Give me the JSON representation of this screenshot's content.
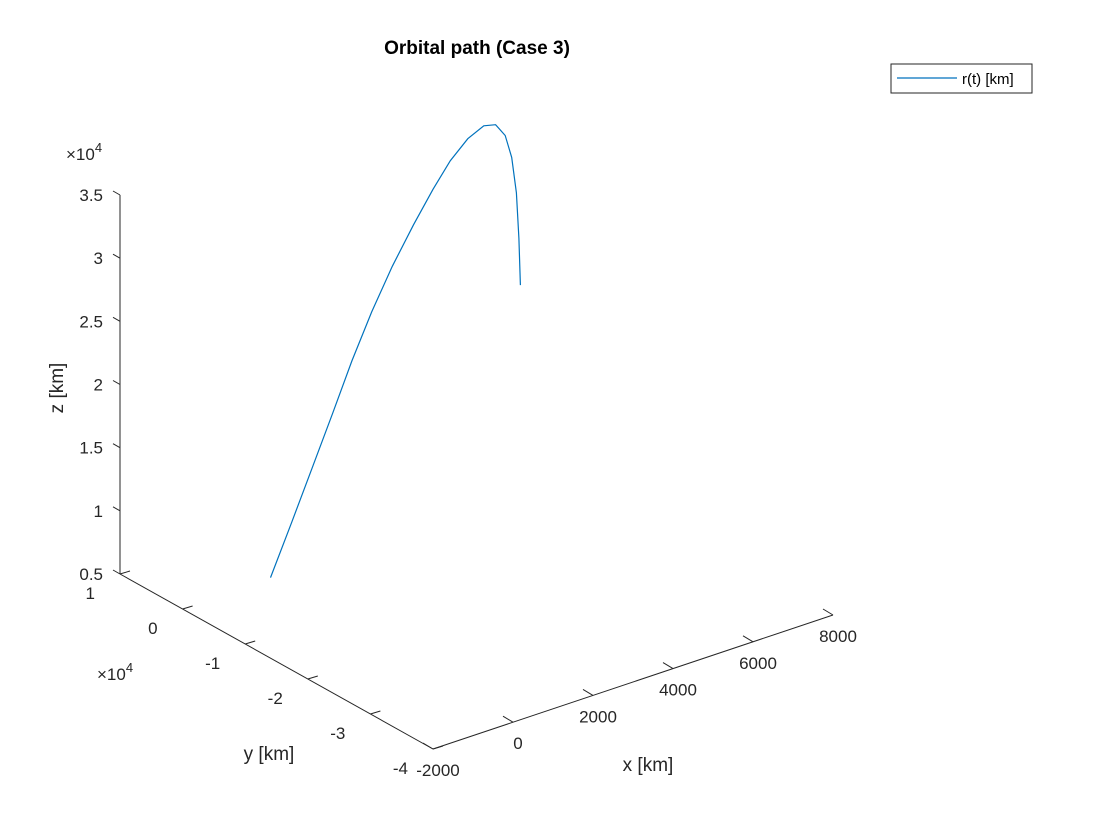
{
  "chart_data": {
    "type": "line",
    "projection": "3d",
    "title": "Orbital path (Case 3)",
    "xlabel": "x [km]",
    "ylabel": "y [km]",
    "zlabel": "z [km]",
    "xlim": [
      -2000,
      8000
    ],
    "ylim": [
      -40000,
      10000
    ],
    "zlim": [
      5000,
      35000
    ],
    "x_ticks": [
      "-2000",
      "0",
      "2000",
      "4000",
      "6000",
      "8000"
    ],
    "y_ticks": [
      "-4",
      "-3",
      "-2",
      "-1",
      "0",
      "1"
    ],
    "z_ticks": [
      "0.5",
      "1",
      "1.5",
      "2",
      "2.5",
      "3",
      "3.5"
    ],
    "y_exponent_label": "×10",
    "y_exponent_power": "4",
    "z_exponent_label": "×10",
    "z_exponent_power": "4",
    "legend": {
      "position": "top-right",
      "entries": [
        "r(t) [km]"
      ]
    },
    "grid": false,
    "series": [
      {
        "name": "r(t) [km]",
        "color": "#0072BD",
        "x": [
          -100,
          540,
          1230,
          1920,
          2640,
          3400,
          4150,
          4900,
          5560,
          6100,
          6600,
          7000,
          7250,
          7380,
          7400,
          7330,
          7190,
          7040
        ],
        "y": [
          -1900,
          -1200,
          -200,
          1100,
          2600,
          4300,
          5800,
          7200,
          8300,
          9000,
          9400,
          9400,
          9100,
          8400,
          7500,
          6300,
          5000,
          3800
        ],
        "z": [
          6000,
          9500,
          13000,
          16000,
          19000,
          21600,
          24000,
          26100,
          27900,
          29400,
          30500,
          31100,
          31000,
          30200,
          28700,
          26300,
          23200,
          20000
        ]
      }
    ]
  }
}
